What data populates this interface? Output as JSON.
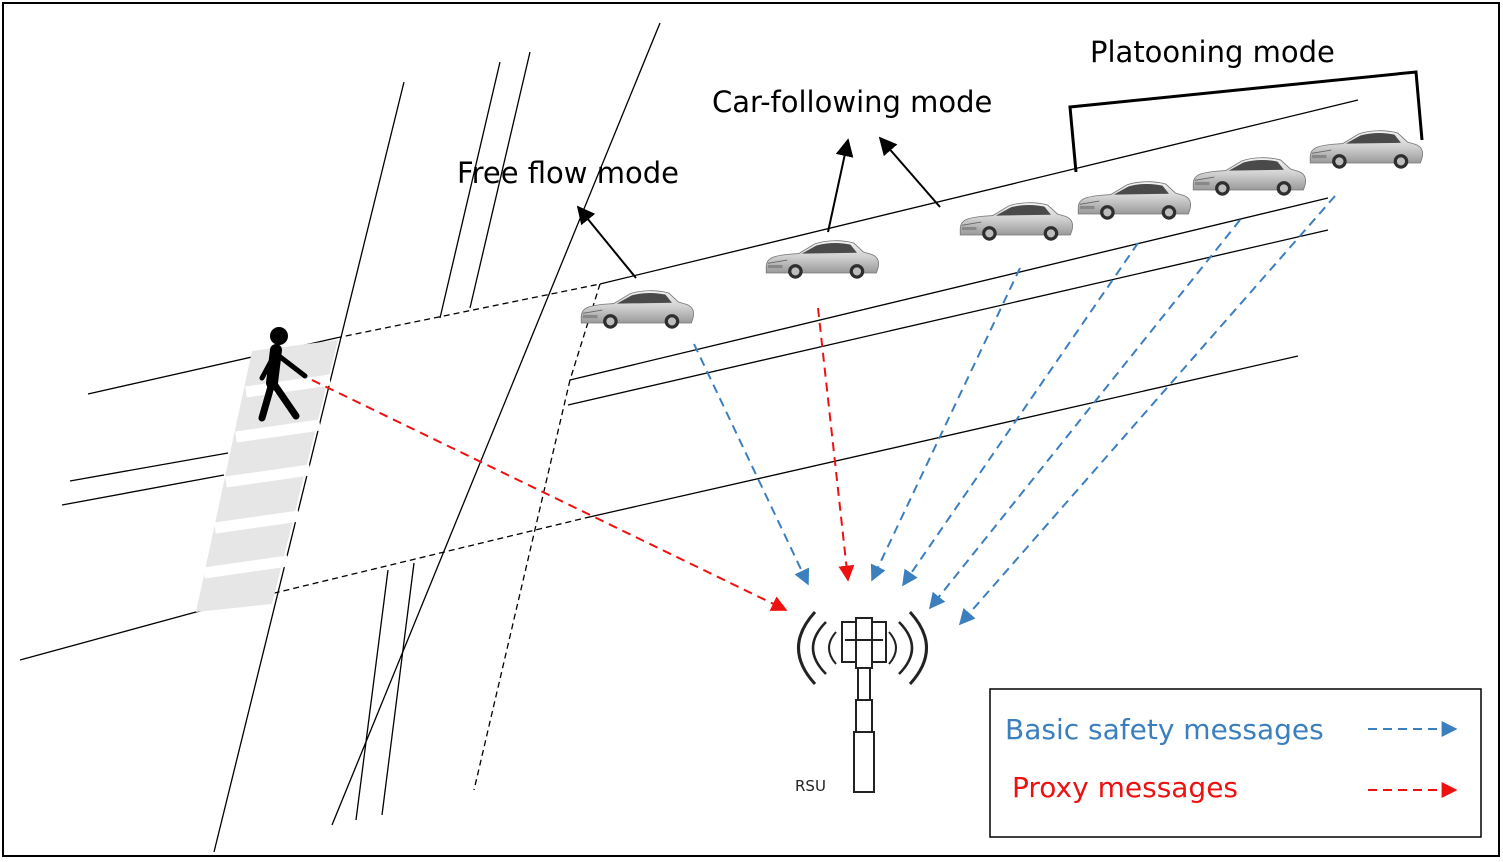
{
  "labels": {
    "free_flow": "Free flow mode",
    "car_following": "Car-following mode",
    "platooning": "Platooning mode",
    "rsu": "RSU"
  },
  "legend": {
    "basic": "Basic safety messages",
    "proxy": "Proxy messages"
  },
  "colors": {
    "basic": "#3b7fbf",
    "proxy": "#ee1111",
    "outline": "#000000",
    "crosswalk": "#e6e6e6"
  },
  "icons": {
    "pedestrian": "pedestrian-icon",
    "car": "car-icon",
    "rsu": "rsu-tower-icon"
  }
}
